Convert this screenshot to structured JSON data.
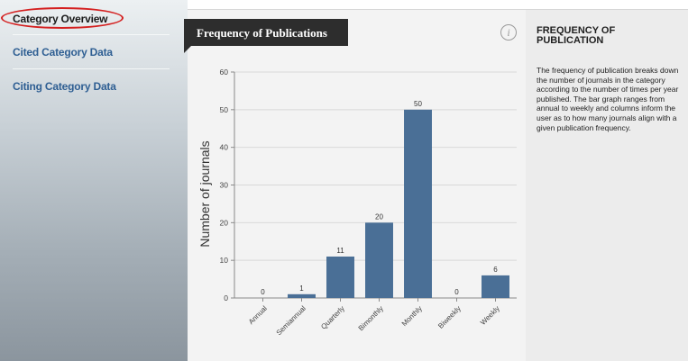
{
  "sidebar": {
    "items": [
      {
        "label": "Category Overview"
      },
      {
        "label": "Cited Category Data"
      },
      {
        "label": "Citing Category Data"
      }
    ]
  },
  "chart_panel": {
    "title": "Frequency of Publications",
    "info_icon": "info-icon",
    "info_glyph": "i"
  },
  "description": {
    "heading": "FREQUENCY OF PUBLICATION",
    "body": "The frequency of publication breaks down the number of journals in the category according to the number of times per year published. The bar graph ranges from annual to weekly and columns inform the user as to how many journals align with a given publication frequency."
  },
  "colors": {
    "bar": "#4a6f96",
    "highlight_circle": "#d42020",
    "link": "#2f5f93"
  },
  "chart_data": {
    "type": "bar",
    "title": "Frequency of Publications",
    "xlabel": "",
    "ylabel": "Number of journals",
    "categories": [
      "Annual",
      "Semiannual",
      "Quarterly",
      "Bimonthly",
      "Monthly",
      "Biweekly",
      "Weekly"
    ],
    "values": [
      0,
      1,
      11,
      20,
      50,
      0,
      6
    ],
    "data_labels": [
      "0",
      "1",
      "11",
      "20",
      "50",
      "0",
      "6"
    ],
    "ylim": [
      0,
      60
    ],
    "yticks": [
      0,
      10,
      20,
      30,
      40,
      50,
      60
    ],
    "ytick_labels": [
      "0",
      "10",
      "20",
      "30",
      "40",
      "50",
      "60"
    ],
    "grid": true
  }
}
